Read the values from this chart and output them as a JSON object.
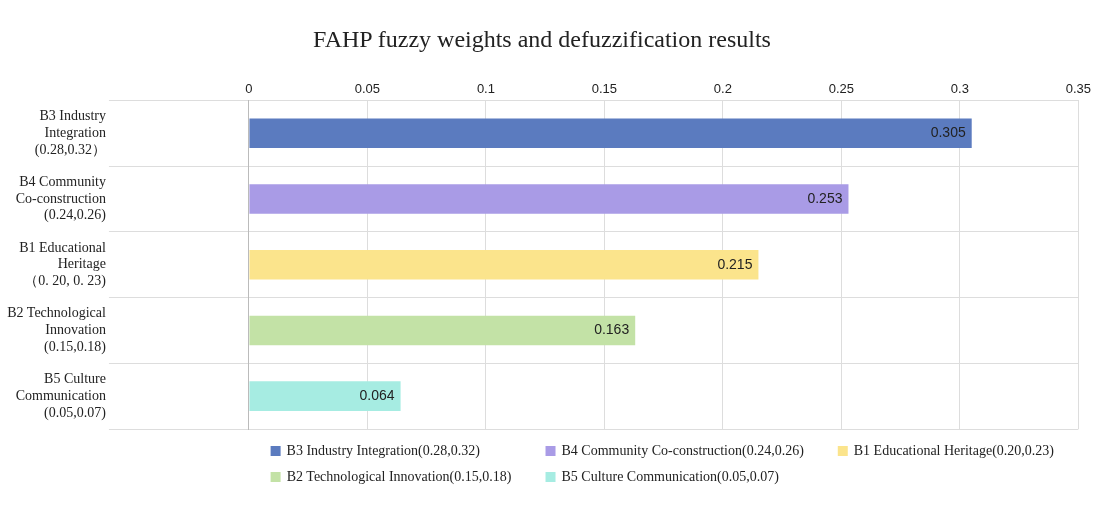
{
  "chart_data": {
    "type": "bar",
    "orientation": "horizontal",
    "title": "FAHP fuzzy weights and defuzzification results",
    "categories": [
      "B3 Industry Integration (0.28,0.32）",
      "B4 Community Co-construction (0.24,0.26)",
      "B1 Educational Heritage （0. 20, 0. 23)",
      "B2 Technological Innovation (0.15,0.18)",
      "B5 Culture Communication (0.05,0.07)"
    ],
    "series": [
      {
        "name": "B3 Industry Integration(0.28,0.32)",
        "color": "#5b7bbf",
        "values": [
          0.305,
          null,
          null,
          null,
          null
        ]
      },
      {
        "name": "B4 Community Co-construction(0.24,0.26)",
        "color": "#a99be6",
        "values": [
          null,
          0.253,
          null,
          null,
          null
        ]
      },
      {
        "name": "B1 Educational Heritage(0.20,0.23)",
        "color": "#fbe48c",
        "values": [
          null,
          null,
          0.215,
          null,
          null
        ]
      },
      {
        "name": "B2 Technological Innovation(0.15,0.18)",
        "color": "#c3e2a6",
        "values": [
          null,
          null,
          null,
          0.163,
          null
        ]
      },
      {
        "name": "B5 Culture Communication(0.05,0.07)",
        "color": "#a6ece2",
        "values": [
          null,
          null,
          null,
          null,
          0.064
        ]
      }
    ],
    "xlim": [
      0,
      0.35
    ],
    "xticks": [
      0,
      0.05,
      0.1,
      0.15,
      0.2,
      0.25,
      0.3,
      0.35
    ],
    "grid": true,
    "data_labels": true,
    "legend": "bottom right"
  }
}
